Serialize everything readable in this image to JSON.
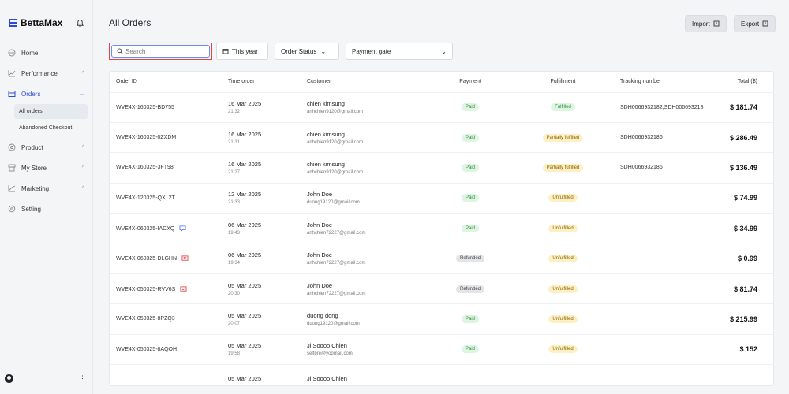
{
  "sidebar": {
    "brand": "BettaMax",
    "nav": [
      {
        "label": "Home",
        "icon": "home-icon",
        "chevron": ""
      },
      {
        "label": "Performance",
        "icon": "chart-icon",
        "chevron": "^"
      },
      {
        "label": "Orders",
        "icon": "orders-icon",
        "chevron": "v"
      },
      {
        "label": "Product",
        "icon": "product-icon",
        "chevron": "^"
      },
      {
        "label": "My Store",
        "icon": "store-icon",
        "chevron": "^"
      },
      {
        "label": "Marketing",
        "icon": "marketing-icon",
        "chevron": "^"
      },
      {
        "label": "Setting",
        "icon": "gear-icon",
        "chevron": ""
      }
    ],
    "orders_sub": [
      "All orders",
      "Abandoned Checkout"
    ],
    "footer_menu": "⋮"
  },
  "header": {
    "title": "All Orders",
    "import_label": "Import",
    "export_label": "Export"
  },
  "filters": {
    "search_placeholder": "Search",
    "year_label": "This year",
    "status_label": "Order Status",
    "gate_label": "Payment gate"
  },
  "table": {
    "columns": [
      "Order ID",
      "Time order",
      "Customer",
      "Payment",
      "Fulfillment",
      "Tracking number",
      "Total ($)"
    ],
    "rows": [
      {
        "id": "WVE4X-160325-BD755",
        "date": "16 Mar 2025",
        "time": "21:32",
        "name": "chien kimsung",
        "email": "anhchien9120@gmail.com",
        "payment": "Paid",
        "fulfillment": "Fulfilled",
        "tracking": "SDH0066932182,SDH006693218",
        "total": "$ 181.74",
        "flag": ""
      },
      {
        "id": "WVE4X-160325-0ZXDM",
        "date": "16 Mar 2025",
        "time": "21:31",
        "name": "chien kimsung",
        "email": "anhchien9120@gmail.com",
        "payment": "Paid",
        "fulfillment": "Partially fulfilled",
        "tracking": "SDH0066932186",
        "total": "$ 286.49",
        "flag": ""
      },
      {
        "id": "WVE4X-160325-3FT98",
        "date": "16 Mar 2025",
        "time": "21:27",
        "name": "chien kimsung",
        "email": "anhchien9120@gmail.com",
        "payment": "Paid",
        "fulfillment": "Partially fulfilled",
        "tracking": "SDH0066932186",
        "total": "$ 136.49",
        "flag": ""
      },
      {
        "id": "WVE4X-120325-QXL2T",
        "date": "12 Mar 2025",
        "time": "21:33",
        "name": "John Doe",
        "email": "duong19120@gmail.com",
        "payment": "Paid",
        "fulfillment": "Unfulfilled",
        "tracking": "",
        "total": "$ 74.99",
        "flag": ""
      },
      {
        "id": "WVE4X-060325-IADXQ",
        "date": "06 Mar 2025",
        "time": "19:43",
        "name": "John Doe",
        "email": "anhchien72227@gmail.com",
        "payment": "Paid",
        "fulfillment": "Unfulfilled",
        "tracking": "",
        "total": "$ 34.99",
        "flag": "blue"
      },
      {
        "id": "WVE4X-060325-DLGHN",
        "date": "06 Mar 2025",
        "time": "19:34",
        "name": "John Doe",
        "email": "anhchien72227@gmail.com",
        "payment": "Refunded",
        "fulfillment": "Unfulfilled",
        "tracking": "",
        "total": "$ 0.99",
        "flag": "red"
      },
      {
        "id": "WVE4X-050325-RVV6S",
        "date": "05 Mar 2025",
        "time": "20:30",
        "name": "John Doe",
        "email": "anhchien72227@gmail.com",
        "payment": "Refunded",
        "fulfillment": "Unfulfilled",
        "tracking": "",
        "total": "$ 81.74",
        "flag": "red"
      },
      {
        "id": "WVE4X-050325-8PZQ3",
        "date": "05 Mar 2025",
        "time": "20:07",
        "name": "duong dong",
        "email": "duong19120@gmail.com",
        "payment": "Paid",
        "fulfillment": "Unfulfilled",
        "tracking": "",
        "total": "$ 215.99",
        "flag": ""
      },
      {
        "id": "WVE4X-050325-8AQOH",
        "date": "05 Mar 2025",
        "time": "19:58",
        "name": "Ji Soooo Chien",
        "email": "selfpre@yopmail.com",
        "payment": "Paid",
        "fulfillment": "Unfulfilled",
        "tracking": "",
        "total": "$ 152",
        "flag": ""
      },
      {
        "id": "",
        "date": "05 Mar 2025",
        "time": "",
        "name": "Ji Soooo Chien",
        "email": "",
        "payment": "",
        "fulfillment": "",
        "tracking": "",
        "total": "",
        "flag": ""
      }
    ]
  },
  "colors": {
    "accent": "#2d4bd8",
    "highlight_border": "#e04545",
    "paid_bg": "#def5e2",
    "unfulfilled_bg": "#fdf0c4"
  }
}
